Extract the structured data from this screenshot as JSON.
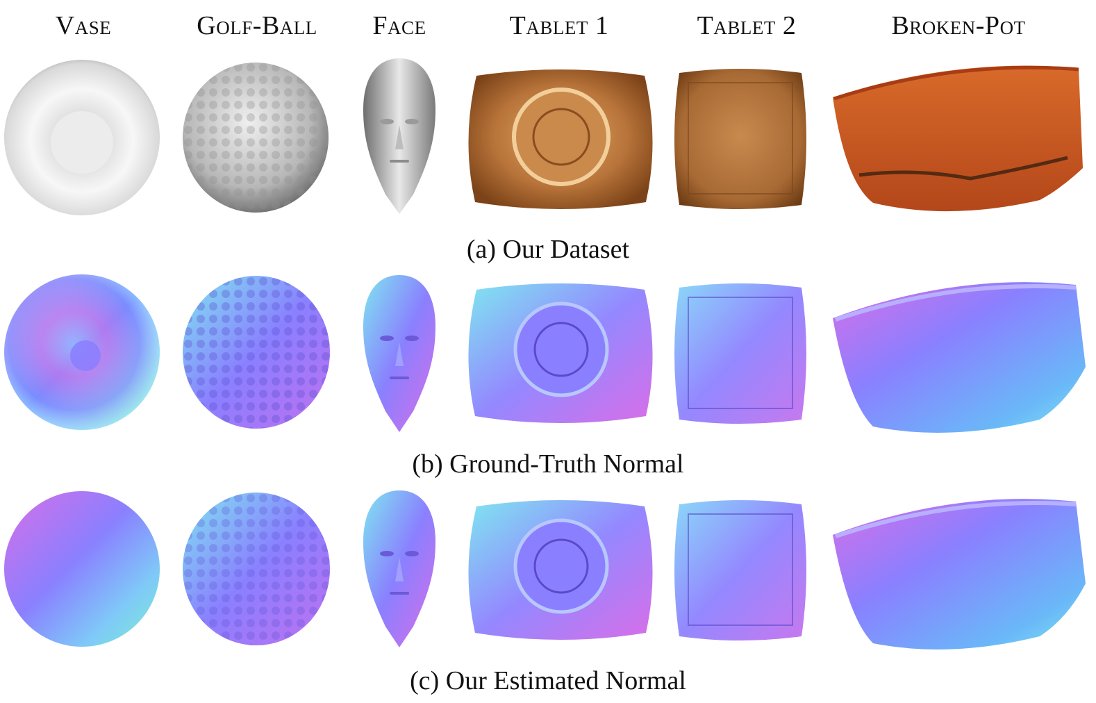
{
  "columns": [
    {
      "key": "vase",
      "label": "Vase"
    },
    {
      "key": "golf",
      "label": "Golf-Ball"
    },
    {
      "key": "face",
      "label": "Face"
    },
    {
      "key": "tablet1",
      "label": "Tablet 1"
    },
    {
      "key": "tablet2",
      "label": "Tablet 2"
    },
    {
      "key": "pot",
      "label": "Broken-Pot"
    }
  ],
  "rows": [
    {
      "key": "dataset",
      "caption": "(a) Our Dataset"
    },
    {
      "key": "gt",
      "caption": "(b) Ground-Truth Normal"
    },
    {
      "key": "est",
      "caption": "(c) Our Estimated Normal"
    }
  ],
  "colors": {
    "normal_blue": "#8a80ff",
    "normal_cyan": "#7fe6f0",
    "normal_magenta": "#d86ee8",
    "normal_green": "#7cf0b0",
    "clay_tablet": "#b8743a",
    "terracotta": "#c8531c",
    "gray_render": "#bdbdbd"
  }
}
